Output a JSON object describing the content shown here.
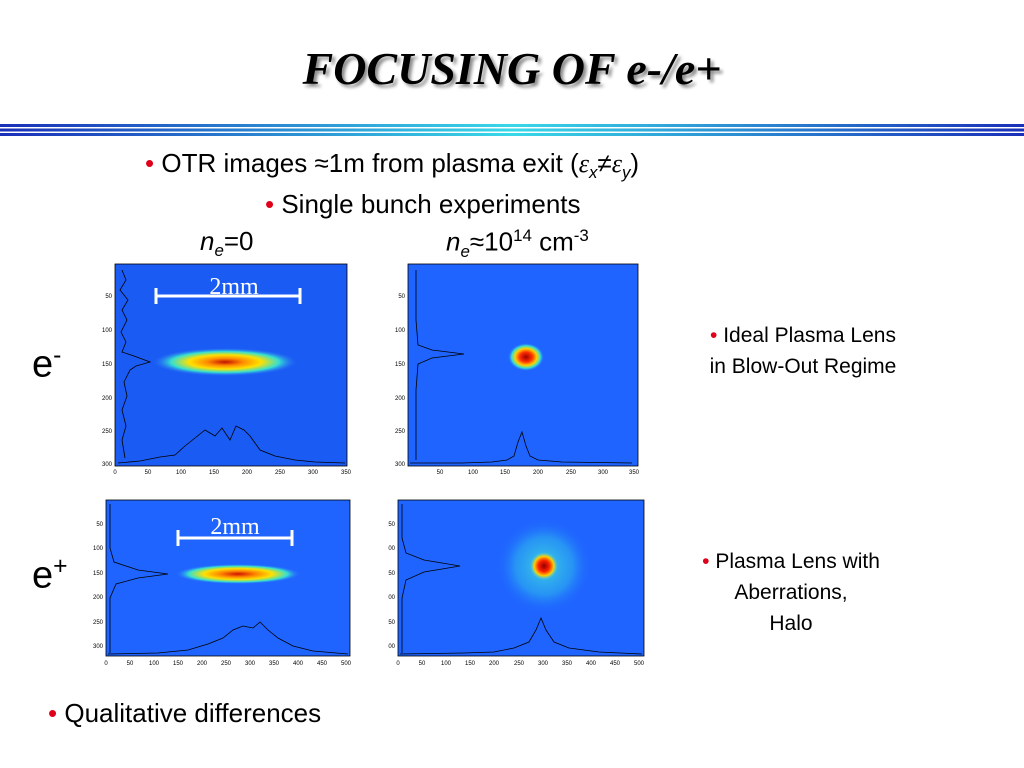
{
  "title": "FOCUSING OF e-/e+",
  "bullets": {
    "b1_prefix": "OTR images ≈1m from plasma exit (",
    "b1_eps": "ε",
    "b1_x": "x",
    "b1_ne": "≠",
    "b1_y": "y",
    "b1_suffix": ")",
    "b2": "Single bunch experiments",
    "b3": "Qualitative differences",
    "bullet_char": "•"
  },
  "column_labels": {
    "left_n": "n",
    "left_sub": "e",
    "left_val": "=0",
    "right_n": "n",
    "right_sub": "e",
    "right_val": "≈10",
    "right_exp": "14",
    "right_unit": " cm",
    "right_unit_exp": "-3"
  },
  "row_labels": {
    "electron": "e",
    "electron_sup": "-",
    "positron": "e",
    "positron_sup": "+"
  },
  "scale_bar": "2mm",
  "side_notes": {
    "top_line1": "Ideal Plasma Lens",
    "top_line2": "in Blow-Out Regime",
    "bottom_line1": "Plasma Lens with",
    "bottom_line2": "Aberrations,",
    "bottom_line3": "Halo"
  },
  "colors": {
    "bullet": "#e0001a",
    "image_background": "#1a5cff",
    "beam_core": "#b00000"
  },
  "plots": {
    "top_left": {
      "y_ticks": [
        "50",
        "100",
        "150",
        "200",
        "250",
        "300"
      ],
      "x_ticks": [
        "0",
        "50",
        "100",
        "150",
        "200",
        "250",
        "300",
        "350"
      ]
    },
    "top_right": {
      "y_ticks": [
        "50",
        "100",
        "150",
        "200",
        "250",
        "300"
      ],
      "x_ticks": [
        "50",
        "100",
        "150",
        "200",
        "250",
        "300",
        "350"
      ]
    },
    "bottom_left": {
      "y_ticks": [
        "50",
        "100",
        "150",
        "200",
        "250",
        "300"
      ],
      "x_ticks": [
        "0",
        "50",
        "100",
        "150",
        "200",
        "250",
        "300",
        "350",
        "400",
        "450",
        "500"
      ]
    },
    "bottom_right": {
      "y_ticks": [
        "50",
        "00",
        "50",
        "00",
        "50",
        "00"
      ],
      "x_ticks": [
        "0",
        "50",
        "100",
        "150",
        "200",
        "250",
        "300",
        "350",
        "400",
        "450",
        "500"
      ]
    }
  }
}
